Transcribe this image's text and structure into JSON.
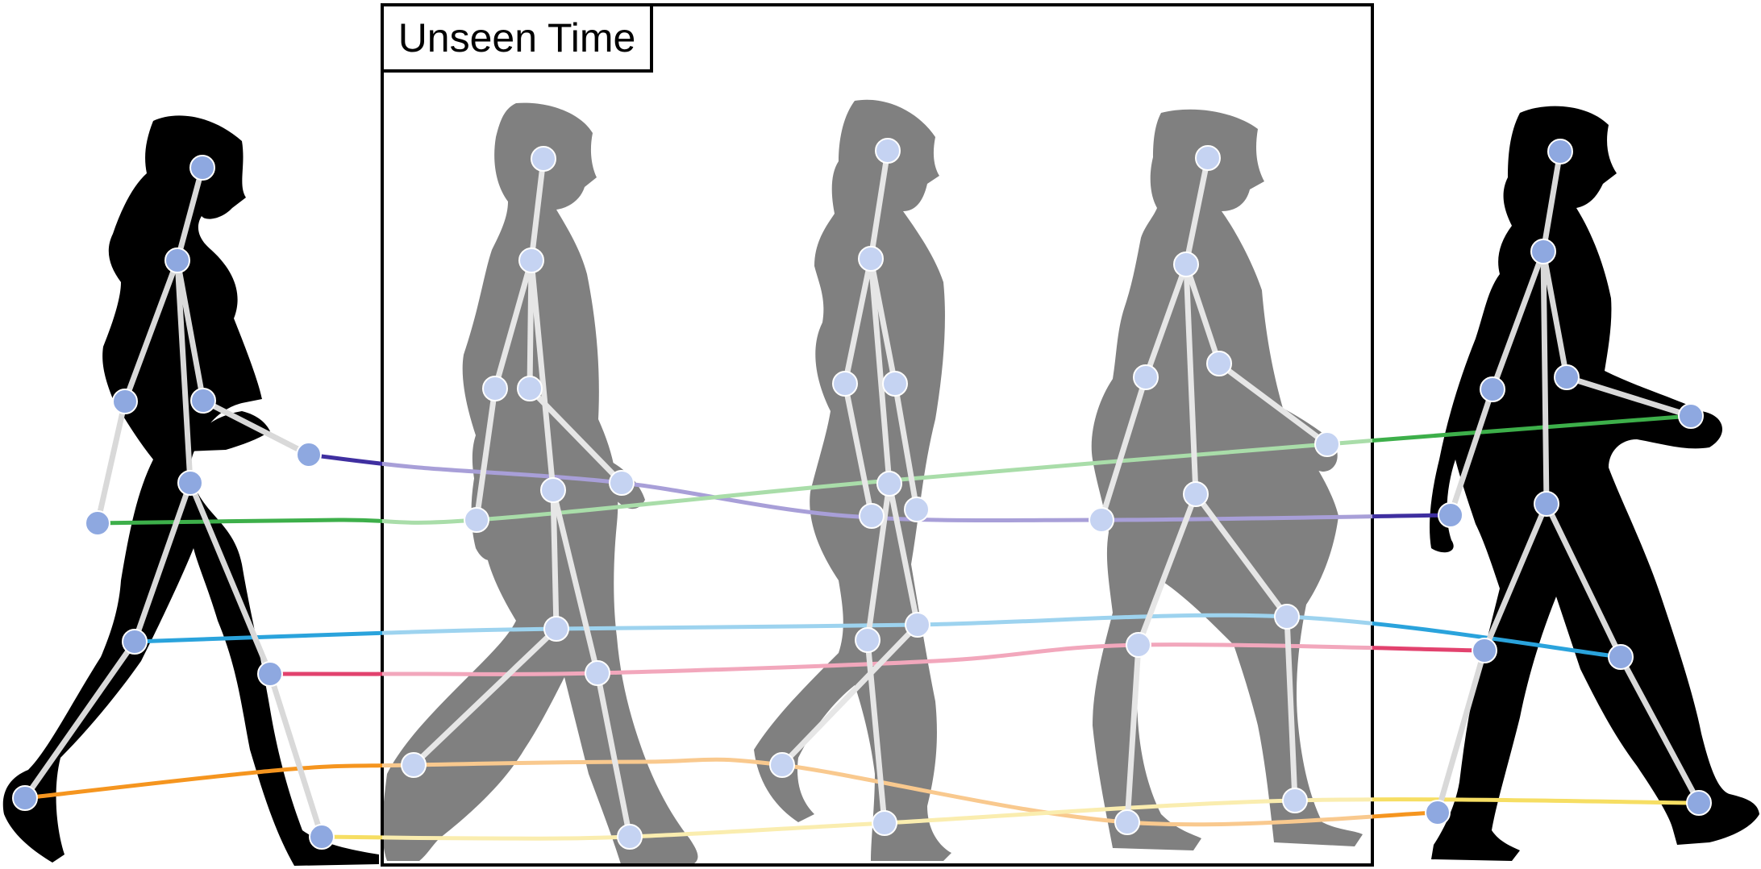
{
  "label": "Unseen Time",
  "colors": {
    "frame": "#000000",
    "seen_silhouette": "#000000",
    "unseen_silhouette": "#808080",
    "joint_seen": "#8EA8E0",
    "joint_unseen": "#C5D3F2",
    "bone_seen": "#D9D9D9",
    "bone_unseen": "#E6E6E6",
    "joint_stroke": "#FFFFFF"
  },
  "trajectories": [
    {
      "joint": "left-hand",
      "color": "#3F2FA0",
      "faded": "#A89FD8"
    },
    {
      "joint": "right-hand",
      "color": "#3DAF4A",
      "faded": "#A9DDA9"
    },
    {
      "joint": "left-knee",
      "color": "#2AA3DC",
      "faded": "#9DD3EF"
    },
    {
      "joint": "right-knee",
      "color": "#E2426E",
      "faded": "#F2A7BC"
    },
    {
      "joint": "left-foot",
      "color": "#F5951F",
      "faded": "#F9C98E"
    },
    {
      "joint": "right-foot",
      "color": "#F6DE63",
      "faded": "#FAEDAF"
    }
  ],
  "figures": [
    {
      "kind": "seen",
      "name": "start-pose"
    },
    {
      "kind": "unseen",
      "name": "unseen-pose-1"
    },
    {
      "kind": "unseen",
      "name": "unseen-pose-2"
    },
    {
      "kind": "unseen",
      "name": "unseen-pose-3"
    },
    {
      "kind": "seen",
      "name": "end-pose"
    }
  ]
}
